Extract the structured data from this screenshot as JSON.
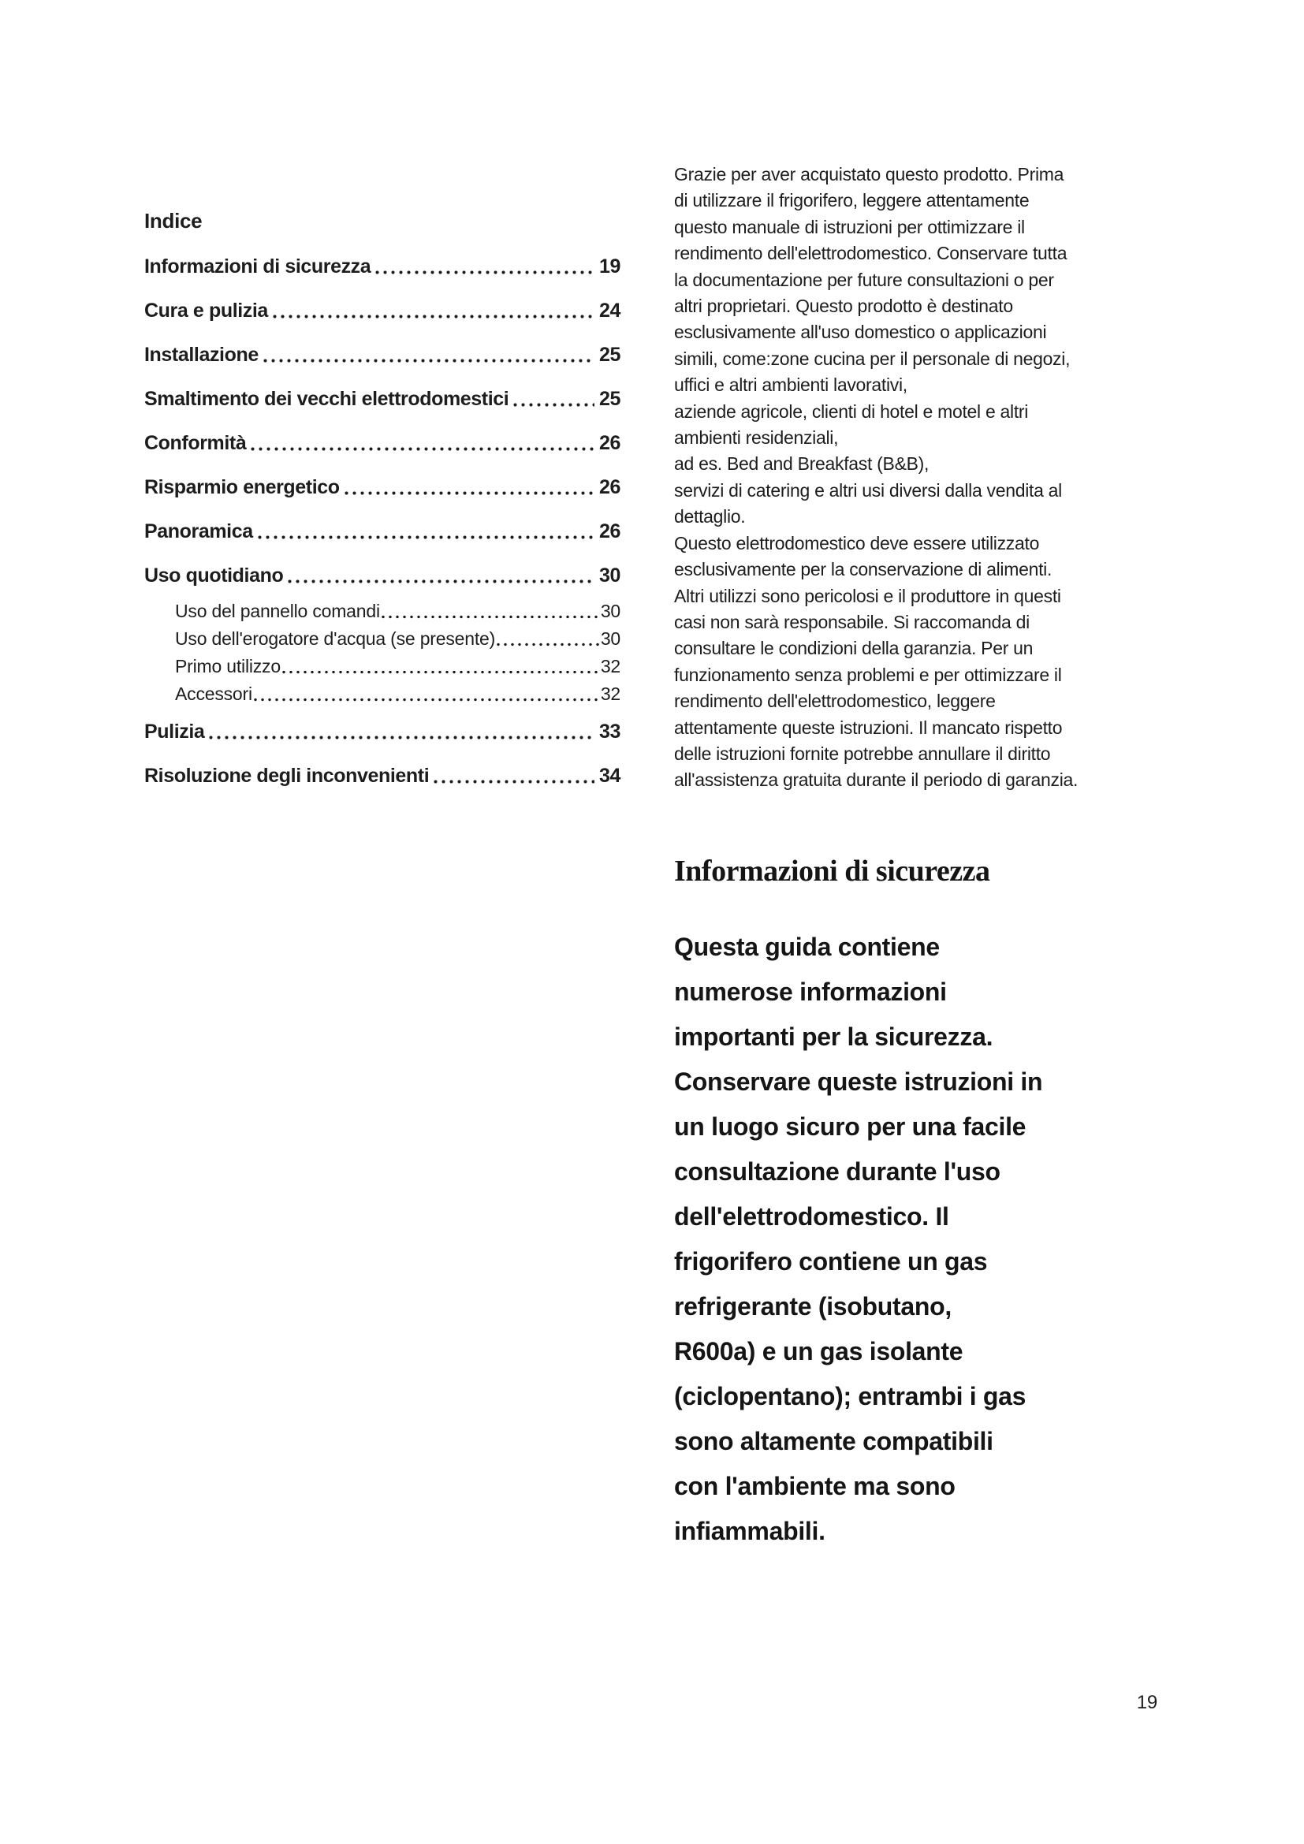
{
  "toc": {
    "title": "Indice",
    "entries": [
      {
        "label": "Informazioni di sicurezza",
        "page": "19"
      },
      {
        "label": "Cura e pulizia",
        "page": "24"
      },
      {
        "label": "Installazione",
        "page": "25"
      },
      {
        "label": "Smaltimento dei vecchi elettrodomestici",
        "page": "25"
      },
      {
        "label": "Conformità",
        "page": "26"
      },
      {
        "label": "Risparmio energetico",
        "page": "26"
      },
      {
        "label": "Panoramica",
        "page": "26"
      },
      {
        "label": "Uso quotidiano",
        "page": "30"
      },
      {
        "label": "Uso del pannello comandi",
        "page": "30"
      },
      {
        "label": "Uso dell'erogatore d'acqua (se presente)",
        "page": "30"
      },
      {
        "label": "Primo utilizzo",
        "page": "32"
      },
      {
        "label": "Accessori",
        "page": "32"
      },
      {
        "label": "Pulizia",
        "page": "33"
      },
      {
        "label": "Risoluzione degli inconvenienti",
        "page": "34"
      }
    ]
  },
  "intro": {
    "paragraph": "Grazie per aver acquistato questo prodotto. Prima\ndi utilizzare il frigorifero, leggere attentamente\nquesto manuale di istruzioni per ottimizzare il\nrendimento dell'elettrodomestico. Conservare tutta\nla documentazione per future consultazioni o per\naltri proprietari. Questo prodotto è destinato\nesclusivamente all'uso domestico o applicazioni\nsimili, come:zone cucina per il personale di negozi,\nuffici e altri ambienti lavorativi,\naziende agricole, clienti di hotel e motel e altri\nambienti residenziali,\nad es. Bed and Breakfast (B&B),\nservizi di catering e altri usi diversi dalla vendita al\ndettaglio.\nQuesto elettrodomestico deve essere utilizzato\nesclusivamente per la conservazione di alimenti.\nAltri utilizzi sono pericolosi e il produttore in questi\ncasi non sarà responsabile. Si raccomanda di\nconsultare le condizioni della garanzia. Per un\nfunzionamento senza problemi e per ottimizzare il\nrendimento dell'elettrodomestico, leggere\nattentamente queste istruzioni. Il mancato rispetto\ndelle istruzioni fornite potrebbe annullare il diritto\nall'assistenza gratuita durante il periodo di garanzia."
  },
  "safety": {
    "heading": "Informazioni di sicurezza",
    "paragraph": "Questa guida contiene\nnumerose informazioni\nimportanti per la sicurezza.\nConservare queste istruzioni in\nun luogo sicuro per una facile\nconsultazione durante l'uso\ndell'elettrodomestico. Il\nfrigorifero contiene un gas\nrefrigerante (isobutano,\nR600a) e un gas isolante\n(ciclopentano); entrambi i gas\nsono altamente compatibili\ncon l'ambiente ma sono\ninfiammabili."
  },
  "footer": {
    "page_number": "19"
  },
  "colors": {
    "text": "#1d1d1d",
    "background": "#ffffff"
  }
}
